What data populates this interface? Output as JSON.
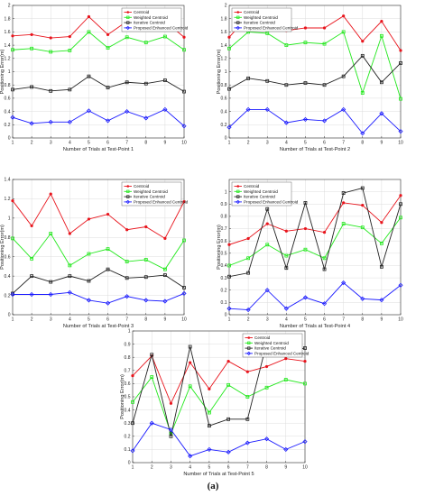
{
  "figure_caption": "(a)",
  "colors": {
    "Centroid": "#e8141c",
    "Weighted Centroid": "#22e81c",
    "Iterative Centroid": "#222222",
    "Proposed Enhanced Centroid": "#1a1aff"
  },
  "chart_data": [
    {
      "type": "line",
      "x": [
        1,
        2,
        3,
        4,
        5,
        6,
        7,
        8,
        9,
        10
      ],
      "xlabel": "Number of Trials at Test-Point 1",
      "ylabel": "Positioning Error(m)",
      "ylim": [
        0,
        2
      ],
      "yticks": [
        0,
        0.2,
        0.4,
        0.6,
        0.8,
        1,
        1.2,
        1.4,
        1.6,
        1.8,
        2
      ],
      "grid": true,
      "legend": "top-right",
      "series": [
        {
          "name": "Centroid",
          "values": [
            1.54,
            1.56,
            1.51,
            1.53,
            1.83,
            1.56,
            1.76,
            1.66,
            1.76,
            1.52
          ]
        },
        {
          "name": "Weighted Centroid",
          "values": [
            1.33,
            1.35,
            1.3,
            1.32,
            1.6,
            1.36,
            1.52,
            1.44,
            1.53,
            1.33
          ]
        },
        {
          "name": "Iterative Centroid",
          "values": [
            0.73,
            0.77,
            0.71,
            0.73,
            0.93,
            0.76,
            0.84,
            0.82,
            0.87,
            0.7
          ]
        },
        {
          "name": "Proposed Enhanced Centroid",
          "values": [
            0.31,
            0.22,
            0.24,
            0.24,
            0.41,
            0.26,
            0.4,
            0.3,
            0.43,
            0.18
          ]
        }
      ]
    },
    {
      "type": "line",
      "x": [
        1,
        2,
        3,
        4,
        5,
        6,
        7,
        8,
        9,
        10
      ],
      "xlabel": "Number of Trials at Test-Point 2",
      "ylabel": "Positioning Error(m)",
      "ylim": [
        0,
        2
      ],
      "yticks": [
        0,
        0.2,
        0.4,
        0.6,
        0.8,
        1,
        1.2,
        1.4,
        1.6,
        1.8,
        2
      ],
      "grid": true,
      "legend": "top-left",
      "series": [
        {
          "name": "Centroid",
          "values": [
            1.52,
            1.84,
            1.82,
            1.62,
            1.66,
            1.66,
            1.84,
            1.46,
            1.76,
            1.32
          ]
        },
        {
          "name": "Weighted Centroid",
          "values": [
            1.35,
            1.6,
            1.58,
            1.4,
            1.44,
            1.42,
            1.6,
            0.68,
            1.54,
            0.59
          ]
        },
        {
          "name": "Iterative Centroid",
          "values": [
            0.74,
            0.9,
            0.86,
            0.8,
            0.83,
            0.8,
            0.93,
            1.24,
            0.84,
            1.13
          ]
        },
        {
          "name": "Proposed Enhanced Centroid",
          "values": [
            0.16,
            0.43,
            0.43,
            0.23,
            0.28,
            0.26,
            0.43,
            0.07,
            0.37,
            0.1
          ]
        }
      ]
    },
    {
      "type": "line",
      "x": [
        1,
        2,
        3,
        4,
        5,
        6,
        7,
        8,
        9,
        10
      ],
      "xlabel": "Number of Trials at Test-Point 3",
      "ylabel": "Positioning Error(m)",
      "ylim": [
        0,
        1.4
      ],
      "yticks": [
        0,
        0.2,
        0.4,
        0.6,
        0.8,
        1,
        1.2,
        1.4
      ],
      "grid": true,
      "legend": "top-right",
      "series": [
        {
          "name": "Centroid",
          "values": [
            1.18,
            0.92,
            1.25,
            0.84,
            0.99,
            1.04,
            0.88,
            0.91,
            0.79,
            1.17
          ]
        },
        {
          "name": "Weighted Centroid",
          "values": [
            0.79,
            0.58,
            0.84,
            0.51,
            0.63,
            0.68,
            0.55,
            0.57,
            0.47,
            0.77
          ]
        },
        {
          "name": "Iterative Centroid",
          "values": [
            0.22,
            0.4,
            0.34,
            0.4,
            0.35,
            0.47,
            0.38,
            0.39,
            0.41,
            0.28
          ]
        },
        {
          "name": "Proposed Enhanced Centroid",
          "values": [
            0.21,
            0.21,
            0.21,
            0.23,
            0.15,
            0.12,
            0.19,
            0.15,
            0.14,
            0.22
          ]
        }
      ]
    },
    {
      "type": "line",
      "x": [
        1,
        2,
        3,
        4,
        5,
        6,
        7,
        8,
        9,
        10
      ],
      "xlabel": "Number of Trials at Test-Point 4",
      "ylabel": "Positioning Error(m)",
      "ylim": [
        0,
        1.1
      ],
      "yticks": [
        0,
        0.1,
        0.2,
        0.3,
        0.4,
        0.5,
        0.6,
        0.7,
        0.8,
        0.9,
        1
      ],
      "grid": true,
      "legend": "top-left",
      "series": [
        {
          "name": "Centroid",
          "values": [
            0.57,
            0.62,
            0.74,
            0.68,
            0.7,
            0.67,
            0.91,
            0.89,
            0.75,
            0.97
          ]
        },
        {
          "name": "Weighted Centroid",
          "values": [
            0.4,
            0.46,
            0.57,
            0.48,
            0.53,
            0.46,
            0.74,
            0.71,
            0.58,
            0.79
          ]
        },
        {
          "name": "Iterative Centroid",
          "values": [
            0.31,
            0.34,
            0.86,
            0.38,
            0.91,
            0.37,
            0.99,
            1.03,
            0.39,
            0.9
          ]
        },
        {
          "name": "Proposed Enhanced Centroid",
          "values": [
            0.05,
            0.04,
            0.2,
            0.05,
            0.14,
            0.09,
            0.26,
            0.13,
            0.12,
            0.24
          ]
        }
      ]
    },
    {
      "type": "line",
      "x": [
        1,
        2,
        3,
        4,
        5,
        6,
        7,
        8,
        9,
        10
      ],
      "xlabel": "Number of Trials at Test-Point 5",
      "ylabel": "Positioning Error(m)",
      "ylim": [
        0,
        1
      ],
      "yticks": [
        0,
        0.1,
        0.2,
        0.3,
        0.4,
        0.5,
        0.6,
        0.7,
        0.8,
        0.9,
        1
      ],
      "grid": true,
      "legend": "top-right",
      "series": [
        {
          "name": "Centroid",
          "values": [
            0.66,
            0.81,
            0.45,
            0.76,
            0.56,
            0.77,
            0.69,
            0.73,
            0.79,
            0.77
          ]
        },
        {
          "name": "Weighted Centroid",
          "values": [
            0.46,
            0.65,
            0.22,
            0.58,
            0.38,
            0.59,
            0.5,
            0.57,
            0.63,
            0.6
          ]
        },
        {
          "name": "Iterative Centroid",
          "values": [
            0.3,
            0.82,
            0.2,
            0.88,
            0.28,
            0.33,
            0.33,
            0.91,
            0.84,
            0.87
          ]
        },
        {
          "name": "Proposed Enhanced Centroid",
          "values": [
            0.09,
            0.3,
            0.25,
            0.05,
            0.1,
            0.08,
            0.15,
            0.18,
            0.1,
            0.16
          ]
        }
      ]
    }
  ]
}
